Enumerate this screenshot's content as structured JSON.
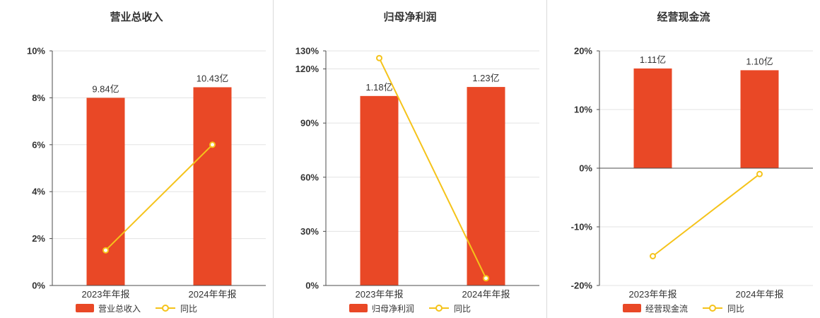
{
  "colors": {
    "bar": "#e94826",
    "line": "#f5c31a",
    "grid": "#e3e3e3",
    "axis": "#4d4d4d",
    "text": "#333333",
    "divider": "#d9d9d9"
  },
  "chart_data": [
    {
      "type": "bar",
      "title": "营业总收入",
      "categories": [
        "2023年年报",
        "2024年年报"
      ],
      "ylim": [
        0,
        10
      ],
      "yticks": [
        0,
        2,
        4,
        6,
        8,
        10
      ],
      "ytick_labels": [
        "0%",
        "2%",
        "4%",
        "6%",
        "8%",
        "10%"
      ],
      "series": [
        {
          "name": "营业总收入",
          "type": "bar",
          "values": [
            8.0,
            8.45
          ],
          "labels": [
            "9.84亿",
            "10.43亿"
          ]
        },
        {
          "name": "同比",
          "type": "line",
          "values": [
            1.5,
            6.0
          ]
        }
      ],
      "legend": [
        "营业总收入",
        "同比"
      ]
    },
    {
      "type": "bar",
      "title": "归母净利润",
      "categories": [
        "2023年年报",
        "2024年年报"
      ],
      "ylim": [
        0,
        130
      ],
      "yticks": [
        0,
        30,
        60,
        90,
        120,
        130
      ],
      "ytick_labels": [
        "0%",
        "30%",
        "60%",
        "90%",
        "120%",
        "130%"
      ],
      "series": [
        {
          "name": "归母净利润",
          "type": "bar",
          "values": [
            105,
            110
          ],
          "labels": [
            "1.18亿",
            "1.23亿"
          ]
        },
        {
          "name": "同比",
          "type": "line",
          "values": [
            126,
            4
          ]
        }
      ],
      "legend": [
        "归母净利润",
        "同比"
      ]
    },
    {
      "type": "bar",
      "title": "经营现金流",
      "categories": [
        "2023年年报",
        "2024年年报"
      ],
      "ylim": [
        -20,
        20
      ],
      "yticks": [
        -20,
        -10,
        0,
        10,
        20
      ],
      "ytick_labels": [
        "-20%",
        "-10%",
        "0%",
        "10%",
        "20%"
      ],
      "series": [
        {
          "name": "经营现金流",
          "type": "bar",
          "values": [
            17.0,
            16.7
          ],
          "labels": [
            "1.11亿",
            "1.10亿"
          ]
        },
        {
          "name": "同比",
          "type": "line",
          "values": [
            -15,
            -1
          ]
        }
      ],
      "legend": [
        "经营现金流",
        "同比"
      ]
    }
  ]
}
